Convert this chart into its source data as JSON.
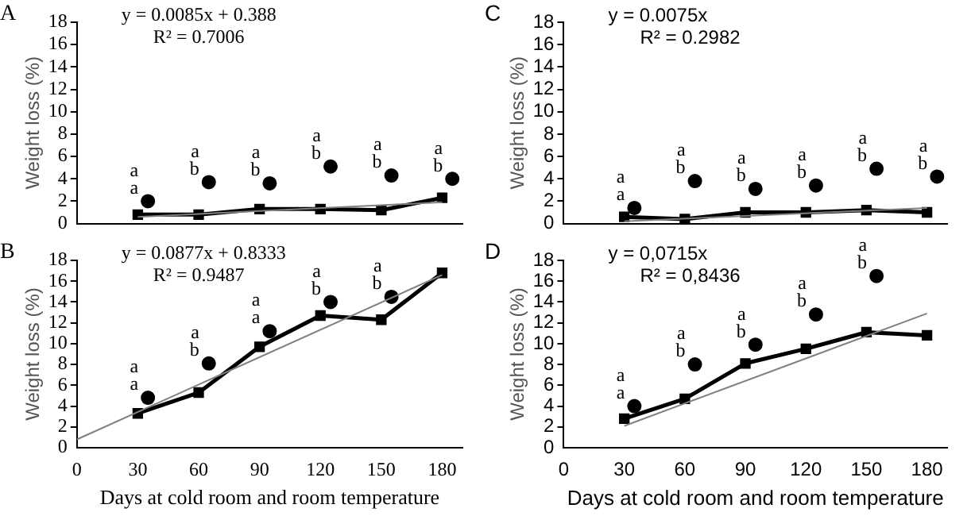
{
  "chart_data": [
    {
      "type": "line",
      "title": "A",
      "ylabel": "Weight loss (%)",
      "xlim": [
        0,
        190
      ],
      "xticks": [
        0,
        30,
        60,
        90,
        120,
        150,
        180
      ],
      "ylim": [
        0,
        18
      ],
      "yticks": [
        0,
        2,
        4,
        6,
        8,
        10,
        12,
        14,
        16,
        18
      ],
      "tick_labels": "y",
      "legend": false,
      "grid": false,
      "annotations": [
        "y = 0.0085x + 0.388",
        "R² = 0.7006"
      ],
      "series": [
        {
          "type": "line",
          "color": "#000000",
          "marker": "square",
          "x": [
            30,
            60,
            90,
            120,
            150,
            180
          ],
          "values": [
            0.8,
            0.8,
            1.3,
            1.3,
            1.2,
            2.3
          ]
        },
        {
          "type": "scatter",
          "color": "#000000",
          "marker": "circle",
          "x": [
            35,
            65,
            95,
            125,
            155,
            185
          ],
          "values": [
            2.0,
            3.7,
            3.6,
            5.1,
            4.3,
            4.0
          ],
          "value_labels": [
            "a\na",
            "a\nb",
            "a\nb",
            "a\nb",
            "a\nb",
            "a\nb"
          ]
        },
        {
          "type": "line",
          "color": "#808080",
          "marker": "none",
          "x": [
            30,
            180
          ],
          "values": [
            0.6,
            1.9
          ]
        }
      ]
    },
    {
      "type": "line",
      "title": "C",
      "ylabel": "Weight loss (%)",
      "xlim": [
        0,
        190
      ],
      "xticks": [
        0,
        30,
        60,
        90,
        120,
        150,
        180
      ],
      "ylim": [
        0,
        18
      ],
      "yticks": [
        0,
        2,
        4,
        6,
        8,
        10,
        12,
        14,
        16,
        18
      ],
      "tick_labels": "y",
      "legend": false,
      "grid": false,
      "annotations": [
        "y = 0.0075x",
        "R² = 0.2982"
      ],
      "series": [
        {
          "type": "line",
          "color": "#000000",
          "marker": "square",
          "x": [
            30,
            60,
            90,
            120,
            150,
            180
          ],
          "values": [
            0.6,
            0.4,
            1.0,
            1.0,
            1.2,
            1.0
          ]
        },
        {
          "type": "scatter",
          "color": "#000000",
          "marker": "circle",
          "x": [
            35,
            65,
            95,
            125,
            155,
            185
          ],
          "values": [
            1.4,
            3.8,
            3.1,
            3.4,
            4.9,
            4.2
          ],
          "value_labels": [
            "a\na",
            "a\nb",
            "a\nb",
            "a\nb",
            "a\nb",
            "a\nb"
          ]
        },
        {
          "type": "line",
          "color": "#808080",
          "marker": "none",
          "x": [
            30,
            180
          ],
          "values": [
            0.2,
            1.4
          ]
        }
      ]
    },
    {
      "type": "line",
      "title": "B",
      "xlabel": "Days at cold room and room temperature",
      "ylabel": "Weight loss (%)",
      "xlim": [
        0,
        190
      ],
      "xticks": [
        0,
        30,
        60,
        90,
        120,
        150,
        180
      ],
      "ylim": [
        0,
        18
      ],
      "yticks": [
        0,
        2,
        4,
        6,
        8,
        10,
        12,
        14,
        16,
        18
      ],
      "legend": false,
      "grid": false,
      "annotations": [
        "y = 0.0877x + 0.8333",
        "R² = 0.9487"
      ],
      "series": [
        {
          "type": "line",
          "color": "#000000",
          "marker": "square",
          "x": [
            30,
            60,
            90,
            120,
            150,
            180
          ],
          "values": [
            3.3,
            5.3,
            9.7,
            12.7,
            12.3,
            16.8
          ]
        },
        {
          "type": "scatter",
          "color": "#000000",
          "marker": "circle",
          "x": [
            35,
            65,
            95,
            125,
            155
          ],
          "values": [
            4.8,
            8.1,
            11.2,
            14.0,
            14.5
          ],
          "value_labels": [
            "a\na",
            "a\nb",
            "a\na",
            "a\nb",
            "a\nb"
          ]
        },
        {
          "type": "line",
          "color": "#808080",
          "marker": "none",
          "x": [
            0,
            180
          ],
          "values": [
            0.8,
            16.6
          ]
        }
      ]
    },
    {
      "type": "line",
      "title": "D",
      "xlabel": "Days at cold room and room temperature",
      "ylabel": "Weight loss (%)",
      "xlim": [
        0,
        190
      ],
      "xticks": [
        0,
        30,
        60,
        90,
        120,
        150,
        180
      ],
      "ylim": [
        0,
        18
      ],
      "yticks": [
        0,
        2,
        4,
        6,
        8,
        10,
        12,
        14,
        16,
        18
      ],
      "legend": false,
      "grid": false,
      "annotations": [
        "y = 0,0715x",
        "R² = 0,8436"
      ],
      "series": [
        {
          "type": "line",
          "color": "#000000",
          "marker": "square",
          "x": [
            30,
            60,
            90,
            120,
            150,
            180
          ],
          "values": [
            2.8,
            4.7,
            8.1,
            9.5,
            11.1,
            10.8
          ]
        },
        {
          "type": "scatter",
          "color": "#000000",
          "marker": "circle",
          "x": [
            35,
            65,
            95,
            125,
            155
          ],
          "values": [
            4.0,
            8.0,
            9.9,
            12.8,
            16.5
          ],
          "value_labels": [
            "a\na",
            "a\nb",
            "a\nb",
            "a\nb",
            "a\nb"
          ]
        },
        {
          "type": "line",
          "color": "#808080",
          "marker": "none",
          "x": [
            30,
            180
          ],
          "values": [
            2.1,
            12.9
          ]
        }
      ]
    }
  ]
}
